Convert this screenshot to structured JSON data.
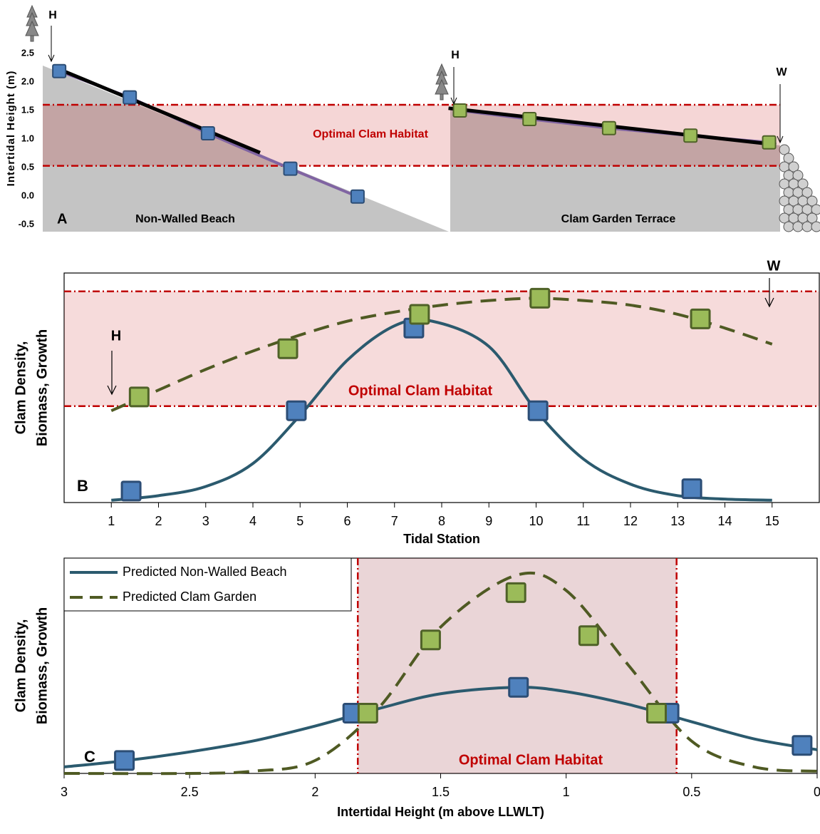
{
  "chart_data": [
    {
      "type": "profile",
      "panel_label": "A",
      "ylabel": "Intertidal Height (m)",
      "ylim": [
        -0.5,
        2.5
      ],
      "yticks": [
        -0.5,
        {
          "value": 0,
          "label": "0.0"
        },
        0.5,
        {
          "value": 1,
          "label": "1.0"
        },
        1.5,
        {
          "value": 2,
          "label": "2.0"
        },
        2.5
      ],
      "xlim": [
        -0.3,
        16
      ],
      "habitat_y": [
        0.53,
        1.6
      ],
      "habitat_color": "#c00000",
      "habitat_label": "Optimal Clam Habitat",
      "region_labels": [
        "Non-Walled Beach",
        "Clam Garden Terrace"
      ],
      "arrow_labels": [
        "H",
        "H",
        "W"
      ],
      "series": [
        {
          "color": "#4f81bd",
          "edge": "#2c4d75",
          "line_color": "#8064a2",
          "x": [
            -0.11,
            1.38,
            3.03,
            4.77,
            6.19
          ],
          "values": [
            2.19,
            1.73,
            1.1,
            0.48,
            -0.01
          ]
        },
        {
          "color": "#9bbb59",
          "edge": "#4f6228",
          "line_color": "#8064a2",
          "x": [
            8.35,
            9.82,
            11.5,
            13.22,
            14.88
          ],
          "values": [
            1.5,
            1.35,
            1.19,
            1.06,
            0.94
          ]
        }
      ],
      "trends": [
        {
          "color": "#000000",
          "x": [
            -0.1,
            4.13
          ],
          "values": [
            2.22,
            0.76
          ]
        },
        {
          "color": "#000000",
          "x": [
            8.11,
            15.03
          ],
          "values": [
            1.54,
            0.9
          ]
        }
      ]
    },
    {
      "type": "curves",
      "panel_label": "B",
      "xlabel": "Tidal Station",
      "ylabel": [
        "Clam Density,",
        "Biomass, Growth"
      ],
      "xlim": [
        0,
        16
      ],
      "xticks": [
        1,
        2,
        3,
        4,
        5,
        6,
        7,
        8,
        9,
        10,
        11,
        12,
        13,
        14,
        15
      ],
      "ylim": [
        0,
        1
      ],
      "habitat_y": [
        0.42,
        0.92
      ],
      "habitat_color": "#c00000",
      "habitat_label": "Optimal Clam Habitat",
      "arrow_labels": [
        "H",
        "W"
      ],
      "series": [
        {
          "color": "#4f81bd",
          "edge": "#2c4d75",
          "line_color": "#2b5a6e",
          "dashed": false,
          "x": [
            1.42,
            4.92,
            7.41,
            10.04,
            13.3
          ],
          "values": [
            0.05,
            0.4,
            0.76,
            0.4,
            0.06
          ],
          "curve_x": [
            1,
            2,
            3,
            4,
            5,
            6,
            7,
            7.8,
            9,
            10,
            11,
            12,
            13,
            14,
            15
          ],
          "curve_values": [
            0.01,
            0.03,
            0.07,
            0.17,
            0.38,
            0.62,
            0.77,
            0.79,
            0.68,
            0.4,
            0.19,
            0.08,
            0.03,
            0.015,
            0.01
          ]
        },
        {
          "color": "#9bbb59",
          "edge": "#4f6228",
          "line_color": "#4f5a23",
          "dashed": true,
          "x": [
            1.59,
            4.74,
            7.53,
            10.08,
            13.48
          ],
          "values": [
            0.46,
            0.67,
            0.82,
            0.89,
            0.8
          ],
          "curve_x": [
            1,
            2,
            3,
            4,
            5,
            6,
            7,
            8,
            9,
            10,
            11,
            12,
            13,
            14,
            15
          ],
          "curve_values": [
            0.4,
            0.49,
            0.58,
            0.66,
            0.73,
            0.79,
            0.83,
            0.86,
            0.88,
            0.89,
            0.88,
            0.86,
            0.82,
            0.76,
            0.69
          ]
        }
      ]
    },
    {
      "type": "curves",
      "panel_label": "C",
      "xlabel": "Intertidal Height (m above LLWLT)",
      "ylabel": [
        "Clam Density,",
        "Biomass, Growth"
      ],
      "xlim": [
        3,
        0
      ],
      "xticks": [
        3,
        2.5,
        2,
        1.5,
        1,
        0.5,
        0
      ],
      "ylim": [
        0,
        1
      ],
      "habitat_x": [
        1.83,
        0.56
      ],
      "habitat_color": "#c00000",
      "habitat_label": "Optimal Clam Habitat",
      "legend": "upper left",
      "series": [
        {
          "name": "Predicted Non-Walled Beach",
          "color": "#4f81bd",
          "edge": "#2c4d75",
          "line_color": "#2b5a6e",
          "dashed": false,
          "x": [
            2.76,
            1.85,
            1.19,
            0.59,
            0.06
          ],
          "values": [
            0.06,
            0.28,
            0.4,
            0.28,
            0.13
          ],
          "curve_x": [
            3,
            2.75,
            2.5,
            2.25,
            2,
            1.75,
            1.5,
            1.2,
            1,
            0.75,
            0.5,
            0.25,
            0
          ],
          "curve_values": [
            0.03,
            0.06,
            0.1,
            0.15,
            0.22,
            0.3,
            0.37,
            0.4,
            0.38,
            0.32,
            0.24,
            0.16,
            0.11
          ]
        },
        {
          "name": "Predicted Clam Garden",
          "color": "#9bbb59",
          "edge": "#4f6228",
          "line_color": "#4f5a23",
          "dashed": true,
          "x": [
            1.79,
            1.54,
            1.2,
            0.91,
            0.64
          ],
          "values": [
            0.28,
            0.62,
            0.84,
            0.64,
            0.28
          ],
          "curve_x": [
            3,
            2.5,
            2.25,
            2,
            1.75,
            1.5,
            1.2,
            1,
            0.75,
            0.5,
            0.25,
            0
          ],
          "curve_values": [
            0,
            0,
            0.01,
            0.06,
            0.3,
            0.68,
            0.92,
            0.85,
            0.5,
            0.15,
            0.03,
            0.01
          ]
        }
      ]
    }
  ]
}
